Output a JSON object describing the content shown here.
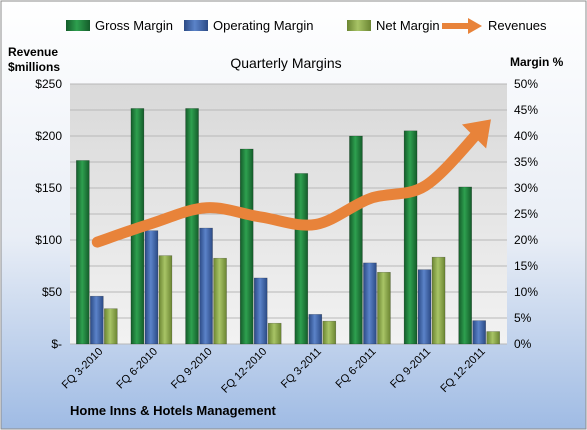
{
  "chart_data": {
    "type": "bar",
    "title": "Quarterly Margins",
    "company": "Home Inns & Hotels Management",
    "left_axis_title": [
      "Revenue",
      "$millions"
    ],
    "right_axis_title": "Margin %",
    "categories": [
      "FQ 3-2010",
      "FQ 6-2010",
      "FQ 9-2010",
      "FQ 12-2010",
      "FQ 3-2011",
      "FQ 6-2011",
      "FQ 9-2011",
      "FQ 12-2011"
    ],
    "left_ticks": [
      "$-",
      "$50",
      "$100",
      "$150",
      "$200",
      "$250"
    ],
    "right_ticks": [
      "0%",
      "5%",
      "10%",
      "15%",
      "20%",
      "25%",
      "30%",
      "35%",
      "40%",
      "45%",
      "50%"
    ],
    "ylim_left": [
      0,
      250
    ],
    "ylim_right": [
      0,
      50
    ],
    "legend_position": "top",
    "series": [
      {
        "name": "Gross Margin",
        "axis": "right",
        "color": "#1f7a3a",
        "values": [
          35.3,
          45.3,
          45.3,
          37.5,
          32.8,
          40.0,
          41.0,
          30.2
        ]
      },
      {
        "name": "Operating Margin",
        "axis": "right",
        "color": "#3e63a8",
        "values": [
          9.2,
          21.8,
          22.3,
          12.7,
          5.7,
          15.6,
          14.3,
          4.5
        ]
      },
      {
        "name": "Net Margin",
        "axis": "right",
        "color": "#8da84a",
        "values": [
          6.8,
          17.0,
          16.5,
          4.0,
          4.4,
          13.8,
          16.7,
          2.4
        ]
      },
      {
        "name": "Revenues",
        "axis": "left",
        "type": "line",
        "color": "#e8833a",
        "values": [
          98,
          116,
          131,
          122,
          115,
          140,
          152,
          205
        ]
      }
    ]
  }
}
